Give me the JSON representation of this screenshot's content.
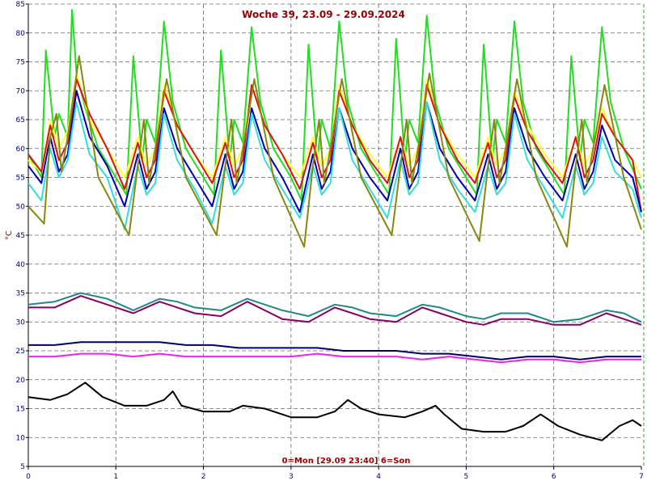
{
  "chart_data": {
    "type": "line",
    "title": "Woche 39, 23.09 - 29.09.2024",
    "xlabel": "0=Mon [29.09 23:40] 6=Son",
    "ylabel": "°C",
    "xlim": [
      0,
      7
    ],
    "ylim": [
      5,
      85
    ],
    "x_ticks": [
      0,
      1,
      2,
      3,
      4,
      5,
      6,
      7
    ],
    "y_ticks": [
      5,
      10,
      15,
      20,
      25,
      30,
      35,
      40,
      45,
      50,
      55,
      60,
      65,
      70,
      75,
      80,
      85
    ],
    "grid": "dashed",
    "legend": "none",
    "series": [
      {
        "color": "#22dd22",
        "x": [
          0,
          0.15,
          0.2,
          0.3,
          0.35,
          0.45,
          0.5,
          0.55,
          0.65,
          0.8,
          1.0,
          1.12,
          1.2,
          1.3,
          1.35,
          1.45,
          1.55,
          1.65,
          1.8,
          2.0,
          2.12,
          2.2,
          2.3,
          2.35,
          2.45,
          2.55,
          2.65,
          2.8,
          3.0,
          3.12,
          3.2,
          3.3,
          3.35,
          3.45,
          3.55,
          3.65,
          3.8,
          4.0,
          4.12,
          4.2,
          4.3,
          4.35,
          4.45,
          4.55,
          4.65,
          4.8,
          5.0,
          5.12,
          5.2,
          5.3,
          5.35,
          5.45,
          5.55,
          5.65,
          5.8,
          6.0,
          6.12,
          6.2,
          6.3,
          6.35,
          6.45,
          6.55,
          6.65,
          6.8,
          7.0
        ],
        "y": [
          59,
          55,
          77,
          62,
          66,
          62,
          84,
          73,
          67,
          60,
          55,
          52,
          76,
          58,
          65,
          61,
          82,
          68,
          60,
          55,
          52,
          77,
          58,
          65,
          61,
          81,
          68,
          60,
          55,
          51,
          78,
          58,
          65,
          60,
          82,
          68,
          60,
          55,
          52,
          79,
          58,
          65,
          61,
          83,
          68,
          60,
          55,
          52,
          78,
          58,
          65,
          61,
          82,
          68,
          60,
          55,
          52,
          76,
          58,
          65,
          61,
          81,
          68,
          60,
          53
        ]
      },
      {
        "color": "#ffff33",
        "x": [
          0,
          0.15,
          0.25,
          0.35,
          0.45,
          0.55,
          0.7,
          0.9,
          1.1,
          1.25,
          1.35,
          1.45,
          1.55,
          1.7,
          1.9,
          2.1,
          2.25,
          2.35,
          2.45,
          2.55,
          2.7,
          2.9,
          3.1,
          3.25,
          3.35,
          3.45,
          3.55,
          3.7,
          3.9,
          4.1,
          4.25,
          4.35,
          4.45,
          4.55,
          4.7,
          4.9,
          5.1,
          5.25,
          5.35,
          5.45,
          5.55,
          5.7,
          5.9,
          6.1,
          6.25,
          6.35,
          6.45,
          6.55,
          6.7,
          6.9,
          7.0
        ],
        "y": [
          58,
          56,
          65,
          60,
          63,
          73,
          65,
          60,
          55,
          62,
          57,
          60,
          71,
          64,
          59,
          55,
          62,
          57,
          60,
          71,
          64,
          59,
          55,
          62,
          57,
          60,
          71,
          64,
          59,
          55,
          62,
          57,
          60,
          72,
          64,
          59,
          55,
          62,
          57,
          60,
          70,
          64,
          59,
          55,
          62,
          57,
          60,
          67,
          62,
          58,
          55
        ]
      },
      {
        "color": "#dd1111",
        "x": [
          0,
          0.15,
          0.25,
          0.35,
          0.45,
          0.55,
          0.7,
          0.9,
          1.1,
          1.25,
          1.35,
          1.45,
          1.55,
          1.7,
          1.9,
          2.1,
          2.25,
          2.35,
          2.45,
          2.55,
          2.7,
          2.9,
          3.1,
          3.25,
          3.35,
          3.45,
          3.55,
          3.7,
          3.9,
          4.1,
          4.25,
          4.35,
          4.45,
          4.55,
          4.7,
          4.9,
          5.1,
          5.25,
          5.35,
          5.45,
          5.55,
          5.7,
          5.9,
          6.1,
          6.25,
          6.35,
          6.45,
          6.55,
          6.7,
          6.9,
          7.0
        ],
        "y": [
          59,
          56,
          64,
          58,
          61,
          72,
          66,
          60,
          53,
          61,
          55,
          58,
          70,
          64,
          59,
          54,
          61,
          55,
          58,
          71,
          64,
          59,
          53,
          61,
          55,
          58,
          70,
          64,
          58,
          54,
          62,
          55,
          58,
          71,
          64,
          58,
          54,
          61,
          55,
          58,
          69,
          63,
          58,
          54,
          62,
          55,
          58,
          66,
          62,
          58,
          49
        ]
      },
      {
        "color": "#0000aa",
        "x": [
          0,
          0.15,
          0.25,
          0.35,
          0.45,
          0.55,
          0.7,
          0.9,
          1.1,
          1.25,
          1.35,
          1.45,
          1.55,
          1.7,
          1.9,
          2.1,
          2.25,
          2.35,
          2.45,
          2.55,
          2.7,
          2.9,
          3.1,
          3.25,
          3.35,
          3.45,
          3.55,
          3.7,
          3.9,
          4.1,
          4.25,
          4.35,
          4.45,
          4.55,
          4.7,
          4.9,
          5.1,
          5.25,
          5.35,
          5.45,
          5.55,
          5.7,
          5.9,
          6.1,
          6.25,
          6.35,
          6.45,
          6.55,
          6.7,
          6.9,
          7.0
        ],
        "y": [
          57,
          54,
          62,
          56,
          59,
          70,
          62,
          57,
          50,
          59,
          53,
          56,
          67,
          60,
          55,
          50,
          59,
          53,
          56,
          67,
          60,
          55,
          49,
          59,
          53,
          56,
          67,
          60,
          55,
          51,
          60,
          53,
          56,
          68,
          60,
          55,
          51,
          59,
          53,
          56,
          67,
          60,
          55,
          51,
          59,
          53,
          56,
          64,
          58,
          55,
          49
        ]
      },
      {
        "color": "#33dddd",
        "x": [
          0,
          0.15,
          0.25,
          0.35,
          0.45,
          0.55,
          0.7,
          0.9,
          1.1,
          1.25,
          1.35,
          1.45,
          1.55,
          1.7,
          1.9,
          2.1,
          2.25,
          2.35,
          2.45,
          2.55,
          2.7,
          2.9,
          3.1,
          3.25,
          3.35,
          3.45,
          3.55,
          3.7,
          3.9,
          4.1,
          4.25,
          4.35,
          4.45,
          4.55,
          4.7,
          4.9,
          5.1,
          5.25,
          5.35,
          5.45,
          5.55,
          5.7,
          5.9,
          6.1,
          6.25,
          6.35,
          6.45,
          6.55,
          6.7,
          6.9,
          7.0
        ],
        "y": [
          54,
          51,
          60,
          55,
          58,
          68,
          59,
          55,
          46,
          57,
          52,
          54,
          66,
          58,
          53,
          47,
          57,
          52,
          54,
          66,
          58,
          53,
          48,
          57,
          52,
          54,
          67,
          58,
          53,
          48,
          58,
          52,
          54,
          68,
          58,
          53,
          49,
          57,
          52,
          54,
          66,
          58,
          53,
          48,
          57,
          52,
          54,
          62,
          56,
          53,
          48
        ]
      },
      {
        "color": "#888811",
        "x": [
          0,
          0.18,
          0.25,
          0.32,
          0.38,
          0.45,
          0.58,
          0.8,
          1.15,
          1.25,
          1.32,
          1.38,
          1.45,
          1.58,
          1.8,
          2.15,
          2.25,
          2.32,
          2.38,
          2.45,
          2.58,
          2.8,
          3.15,
          3.25,
          3.32,
          3.38,
          3.45,
          3.58,
          3.8,
          4.15,
          4.25,
          4.32,
          4.38,
          4.45,
          4.58,
          4.8,
          5.15,
          5.25,
          5.32,
          5.38,
          5.45,
          5.58,
          5.8,
          6.15,
          6.25,
          6.32,
          6.38,
          6.45,
          6.58,
          6.8,
          7.0
        ],
        "y": [
          50,
          47,
          62,
          66,
          56,
          62,
          76,
          55,
          45,
          57,
          65,
          54,
          60,
          72,
          55,
          45,
          57,
          65,
          54,
          60,
          72,
          55,
          43,
          57,
          65,
          54,
          60,
          72,
          55,
          45,
          57,
          65,
          54,
          60,
          73,
          55,
          44,
          57,
          65,
          54,
          60,
          72,
          55,
          43,
          57,
          65,
          54,
          60,
          71,
          55,
          46
        ]
      },
      {
        "color": "#228888",
        "x": [
          0,
          0.3,
          0.6,
          0.9,
          1.2,
          1.5,
          1.7,
          1.9,
          2.2,
          2.5,
          2.7,
          2.9,
          3.2,
          3.5,
          3.7,
          3.9,
          4.2,
          4.5,
          4.7,
          5.0,
          5.2,
          5.4,
          5.7,
          6.0,
          6.3,
          6.6,
          6.8,
          7.0
        ],
        "y": [
          33,
          33.5,
          35,
          34,
          32,
          34,
          33.5,
          32.5,
          32,
          34,
          33,
          32,
          31,
          33,
          32.5,
          31.5,
          31,
          33,
          32.5,
          31,
          30.5,
          31.5,
          31.5,
          30,
          30.5,
          32,
          31.5,
          30
        ]
      },
      {
        "color": "#880066",
        "x": [
          0,
          0.3,
          0.6,
          0.9,
          1.2,
          1.5,
          1.7,
          1.9,
          2.2,
          2.5,
          2.7,
          2.9,
          3.2,
          3.5,
          3.7,
          3.9,
          4.2,
          4.5,
          4.7,
          5.0,
          5.2,
          5.4,
          5.7,
          6.0,
          6.3,
          6.6,
          6.8,
          7.0
        ],
        "y": [
          32.5,
          32.5,
          34.5,
          33,
          31.5,
          33.5,
          32.5,
          31.5,
          31,
          33.5,
          32,
          30.5,
          30,
          32.5,
          31.5,
          30.5,
          30,
          32.5,
          31.5,
          30,
          29.5,
          30.5,
          30.5,
          29.5,
          29.5,
          31.5,
          30.5,
          29.5
        ]
      },
      {
        "color": "#000066",
        "x": [
          0,
          0.3,
          0.6,
          0.9,
          1.2,
          1.5,
          1.8,
          2.1,
          2.4,
          2.7,
          3.0,
          3.3,
          3.6,
          3.9,
          4.2,
          4.5,
          4.8,
          5.1,
          5.4,
          5.7,
          6.0,
          6.3,
          6.6,
          6.9,
          7.0
        ],
        "y": [
          26,
          26,
          26.5,
          26.5,
          26.5,
          26.5,
          26,
          26,
          25.5,
          25.5,
          25.5,
          25.5,
          25,
          25,
          25,
          24.5,
          24.5,
          24,
          23.5,
          24,
          24,
          23.5,
          24,
          24,
          24
        ]
      },
      {
        "color": "#ee22ee",
        "x": [
          0,
          0.3,
          0.6,
          0.9,
          1.2,
          1.5,
          1.8,
          2.1,
          2.4,
          2.7,
          3.0,
          3.3,
          3.6,
          3.9,
          4.2,
          4.5,
          4.8,
          5.1,
          5.4,
          5.7,
          6.0,
          6.3,
          6.6,
          6.9,
          7.0
        ],
        "y": [
          24,
          24,
          24.5,
          24.5,
          24,
          24.5,
          24,
          24,
          24,
          24,
          24,
          24.5,
          24,
          24,
          24,
          23.5,
          24,
          23.5,
          23,
          23.5,
          23.5,
          23,
          23.5,
          23.5,
          23.5
        ]
      },
      {
        "color": "#000000",
        "x": [
          0,
          0.25,
          0.45,
          0.65,
          0.85,
          1.1,
          1.35,
          1.55,
          1.65,
          1.75,
          2.0,
          2.3,
          2.45,
          2.7,
          3.0,
          3.3,
          3.5,
          3.65,
          3.8,
          4.0,
          4.3,
          4.5,
          4.65,
          4.75,
          4.95,
          5.2,
          5.45,
          5.65,
          5.85,
          6.05,
          6.3,
          6.55,
          6.75,
          6.9,
          7.0
        ],
        "y": [
          17,
          16.5,
          17.5,
          19.5,
          17,
          15.5,
          15.5,
          16.5,
          18,
          15.5,
          14.5,
          14.5,
          15.5,
          15,
          13.5,
          13.5,
          14.5,
          16.5,
          15,
          14,
          13.5,
          14.5,
          15.5,
          14,
          11.5,
          11,
          11,
          12,
          14,
          12,
          10.5,
          9.5,
          12,
          13,
          12
        ]
      }
    ]
  }
}
